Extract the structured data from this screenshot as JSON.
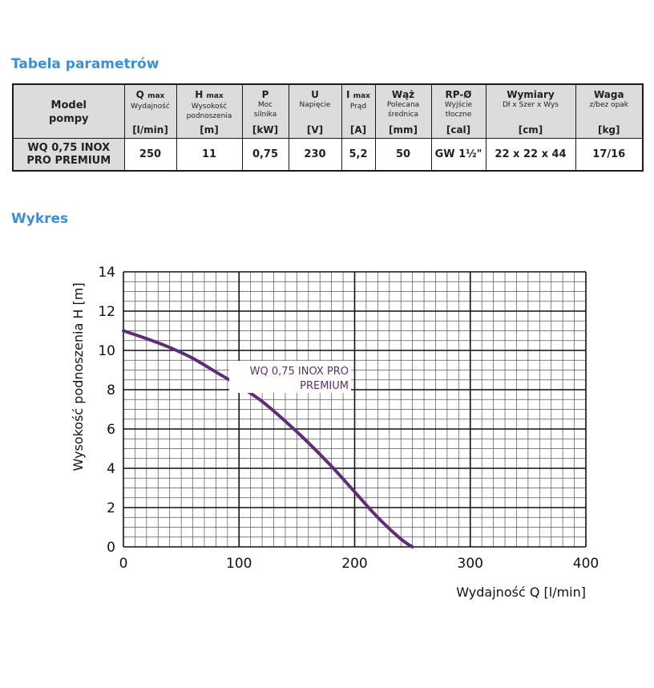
{
  "sections": {
    "table_title": "Tabela parametrów",
    "chart_title": "Wykres"
  },
  "table": {
    "model_header": [
      "Model",
      "pompy"
    ],
    "columns": [
      {
        "main": "Q",
        "sub": "max",
        "desc": [
          "Wydajność"
        ],
        "unit": "[l/min]"
      },
      {
        "main": "H",
        "sub": "max",
        "desc": [
          "Wysokość",
          "podnoszenia"
        ],
        "unit": "[m]"
      },
      {
        "main": "P",
        "sub": "",
        "desc": [
          "Moc",
          "silnika"
        ],
        "unit": "[kW]"
      },
      {
        "main": "U",
        "sub": "",
        "desc": [
          "Napięcie"
        ],
        "unit": "[V]"
      },
      {
        "main": "I",
        "sub": "max",
        "desc": [
          "Prąd"
        ],
        "unit": "[A]"
      },
      {
        "main": "Wąż",
        "sub": "",
        "desc": [
          "Polecana",
          "średnica"
        ],
        "unit": "[mm]"
      },
      {
        "main": "RP-Ø",
        "sub": "",
        "desc": [
          "Wyjście",
          "tłoczne"
        ],
        "unit": "[cal]"
      },
      {
        "main": "Wymiary",
        "sub": "",
        "desc": [
          "Dł x Szer x Wys"
        ],
        "unit": "[cm]"
      },
      {
        "main": "Waga",
        "sub": "",
        "desc": [
          "z/bez opak"
        ],
        "unit": "[kg]"
      }
    ],
    "rows": [
      {
        "model": [
          "WQ 0,75 INOX",
          "PRO PREMIUM"
        ],
        "values": [
          "250",
          "11",
          "0,75",
          "230",
          "5,2",
          "50",
          "GW 1½\"",
          "22 x 22 x 44",
          "17/16"
        ]
      }
    ]
  },
  "chart_data": {
    "type": "line",
    "xlabel": "Wydajność Q [l/min]",
    "ylabel": "Wysokość podnoszenia H [m]",
    "xlim": [
      0,
      400
    ],
    "ylim": [
      0,
      14
    ],
    "xticks": [
      0,
      100,
      200,
      300,
      400
    ],
    "yticks": [
      0,
      2,
      4,
      6,
      8,
      10,
      12,
      14
    ],
    "grid": true,
    "series": [
      {
        "name": "WQ 0,75 INOX PRO PREMIUM",
        "color": "#5e2d79",
        "x": [
          0,
          20,
          40,
          60,
          80,
          100,
          120,
          140,
          160,
          180,
          200,
          220,
          240,
          250
        ],
        "y": [
          11,
          10.6,
          10.15,
          9.6,
          8.9,
          8.2,
          7.4,
          6.4,
          5.3,
          4.1,
          2.8,
          1.5,
          0.4,
          0
        ]
      }
    ]
  }
}
